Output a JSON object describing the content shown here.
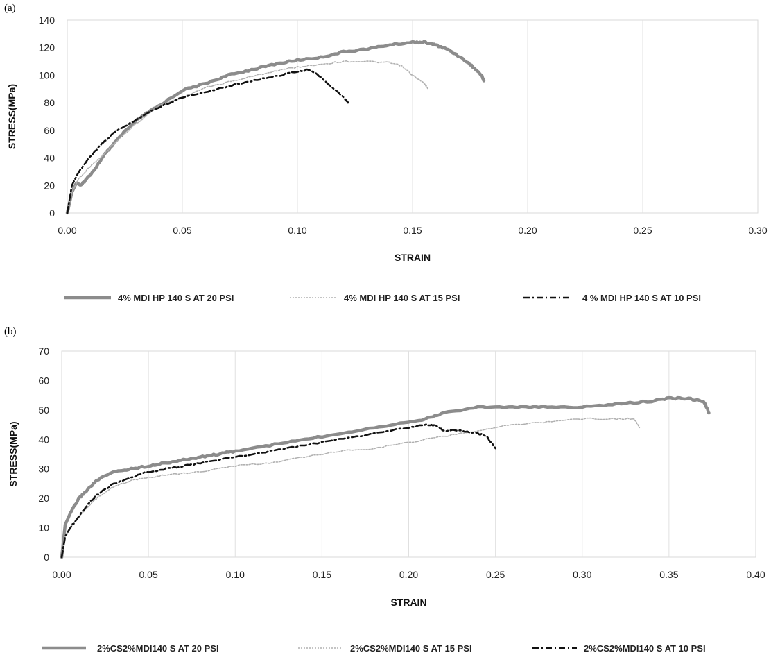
{
  "chart_data": [
    {
      "type": "line",
      "panel_label": "(a)",
      "xlabel": "STRAIN",
      "ylabel": "STRESS(MPa)",
      "xlim": [
        0,
        0.3
      ],
      "ylim": [
        0,
        140
      ],
      "xticks": [
        "0.00",
        "0.05",
        "0.10",
        "0.15",
        "0.20",
        "0.25",
        "0.30"
      ],
      "yticks": [
        "0",
        "20",
        "40",
        "60",
        "80",
        "100",
        "120",
        "140"
      ],
      "grid": "vertical",
      "legend_position": "bottom",
      "series": [
        {
          "name": "4% MDI HP 140 S AT 20 PSI",
          "color": "#8c8c8c",
          "style": "solid-thick",
          "x": [
            0,
            0.002,
            0.004,
            0.006,
            0.008,
            0.012,
            0.016,
            0.02,
            0.025,
            0.03,
            0.035,
            0.04,
            0.05,
            0.06,
            0.07,
            0.08,
            0.09,
            0.1,
            0.11,
            0.12,
            0.13,
            0.14,
            0.15,
            0.155,
            0.16,
            0.165,
            0.17,
            0.175,
            0.18,
            0.181
          ],
          "y": [
            0,
            15,
            22,
            20,
            24,
            32,
            42,
            50,
            59,
            67,
            73,
            78,
            89,
            94,
            100,
            104,
            108,
            111,
            113,
            117,
            119,
            122,
            124,
            124,
            122,
            119,
            114,
            108,
            100,
            96
          ]
        },
        {
          "name": "4% MDI HP 140 S AT 15 PSI",
          "color": "#b0b0b0",
          "style": "dotted",
          "x": [
            0,
            0.002,
            0.005,
            0.01,
            0.015,
            0.02,
            0.03,
            0.04,
            0.05,
            0.06,
            0.07,
            0.08,
            0.09,
            0.1,
            0.11,
            0.12,
            0.13,
            0.14,
            0.145,
            0.15,
            0.155,
            0.157
          ],
          "y": [
            0,
            15,
            25,
            34,
            41,
            50,
            65,
            78,
            84,
            91,
            95,
            99,
            103,
            106,
            108,
            110,
            110,
            109,
            107,
            100,
            94,
            90
          ]
        },
        {
          "name": "4 % MDI HP 140 S AT 10 PSI",
          "color": "#111111",
          "style": "dash-dot",
          "x": [
            0,
            0.002,
            0.005,
            0.01,
            0.015,
            0.02,
            0.03,
            0.04,
            0.05,
            0.06,
            0.07,
            0.08,
            0.09,
            0.1,
            0.105,
            0.11,
            0.115,
            0.12,
            0.122
          ],
          "y": [
            0,
            20,
            30,
            41,
            50,
            58,
            68,
            77,
            84,
            88,
            92,
            96,
            99,
            103,
            104,
            99,
            91,
            84,
            80
          ]
        }
      ]
    },
    {
      "type": "line",
      "panel_label": "(b)",
      "xlabel": "STRAIN",
      "ylabel": "STRESS(MPa)",
      "xlim": [
        0,
        0.4
      ],
      "ylim": [
        0,
        70
      ],
      "xticks": [
        "0.00",
        "0.05",
        "0.10",
        "0.15",
        "0.20",
        "0.25",
        "0.30",
        "0.35",
        "0.40"
      ],
      "yticks": [
        "0",
        "10",
        "20",
        "30",
        "40",
        "50",
        "60",
        "70"
      ],
      "grid": "vertical",
      "legend_position": "bottom",
      "series": [
        {
          "name": "2%CS2%MDI140 S AT 20 PSI",
          "color": "#8c8c8c",
          "style": "solid-thick",
          "x": [
            0,
            0.002,
            0.005,
            0.01,
            0.015,
            0.02,
            0.03,
            0.04,
            0.05,
            0.06,
            0.07,
            0.08,
            0.09,
            0.1,
            0.12,
            0.14,
            0.16,
            0.18,
            0.2,
            0.21,
            0.22,
            0.24,
            0.26,
            0.28,
            0.3,
            0.32,
            0.34,
            0.35,
            0.36,
            0.37,
            0.373
          ],
          "y": [
            0,
            11,
            15,
            20,
            23,
            26,
            29,
            30,
            31,
            32,
            33,
            34,
            35,
            36,
            38,
            40,
            42,
            44,
            46,
            47,
            49,
            51,
            51,
            51,
            51,
            52,
            53,
            54,
            54,
            53,
            49
          ]
        },
        {
          "name": "2%CS2%MDI140 S AT 15 PSI",
          "color": "#b0b0b0",
          "style": "dotted",
          "x": [
            0,
            0.002,
            0.005,
            0.01,
            0.02,
            0.03,
            0.04,
            0.05,
            0.06,
            0.08,
            0.1,
            0.12,
            0.14,
            0.16,
            0.18,
            0.2,
            0.22,
            0.24,
            0.26,
            0.28,
            0.3,
            0.32,
            0.33,
            0.333
          ],
          "y": [
            0,
            7,
            10,
            14,
            20,
            24,
            26,
            27,
            28,
            29,
            31,
            32,
            34,
            36,
            37,
            39,
            41,
            43,
            45,
            46,
            47,
            47,
            47,
            44
          ]
        },
        {
          "name": "2%CS2%MDI140 S AT 10 PSI",
          "color": "#111111",
          "style": "dash-dot",
          "x": [
            0,
            0.002,
            0.005,
            0.01,
            0.015,
            0.02,
            0.03,
            0.04,
            0.05,
            0.06,
            0.07,
            0.08,
            0.1,
            0.12,
            0.14,
            0.16,
            0.18,
            0.2,
            0.21,
            0.215,
            0.22,
            0.23,
            0.24,
            0.245,
            0.25
          ],
          "y": [
            0,
            7,
            10,
            14,
            18,
            21,
            25,
            27,
            29,
            30,
            31,
            32,
            34,
            36,
            38,
            40,
            42,
            44,
            45,
            45,
            43,
            43,
            42,
            41,
            37
          ]
        }
      ]
    }
  ]
}
